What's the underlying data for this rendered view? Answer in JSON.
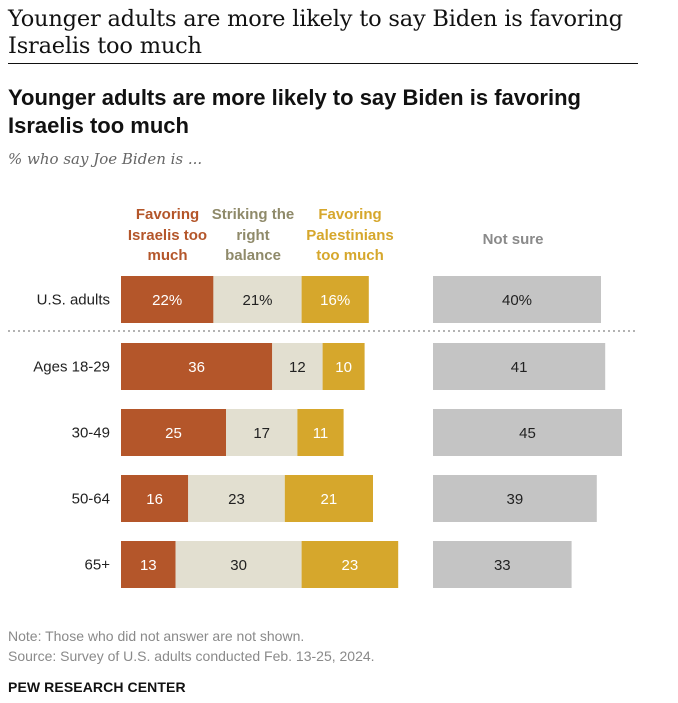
{
  "page": {
    "heading": "Younger adults are more likely to say Biden is favoring Israelis too much"
  },
  "chart_data": {
    "type": "bar",
    "orientation": "horizontal",
    "stacked": true,
    "title": "Younger adults are more likely to say Biden is favoring Israelis too much",
    "subtitle": "% who say Joe Biden is ...",
    "categories": [
      "U.S. adults",
      "Ages 18-29",
      "30-49",
      "50-64",
      "65+"
    ],
    "series": [
      {
        "name": "Favoring Israelis too much",
        "color": "#b4562a",
        "text_color": "#ffffff",
        "values": [
          22,
          36,
          25,
          16,
          13
        ],
        "labels": [
          "22%",
          "36",
          "25",
          "16",
          "13"
        ]
      },
      {
        "name": "Striking the right balance",
        "color": "#e2dfd0",
        "text_color": "#222222",
        "values": [
          21,
          12,
          17,
          23,
          30
        ],
        "labels": [
          "21%",
          "12",
          "17",
          "23",
          "30"
        ]
      },
      {
        "name": "Favoring Palestinians too much",
        "color": "#d6a72c",
        "text_color": "#ffffff",
        "values": [
          16,
          10,
          11,
          21,
          23
        ],
        "labels": [
          "16%",
          "10",
          "11",
          "21",
          "23"
        ]
      },
      {
        "name": "Not sure",
        "color": "#c4c4c4",
        "text_color": "#222222",
        "separate": true,
        "values": [
          40,
          41,
          45,
          39,
          33
        ],
        "labels": [
          "40%",
          "41",
          "45",
          "39",
          "33"
        ]
      }
    ],
    "legend": {
      "favoring_israelis": "Favoring Israelis too much",
      "right_balance": "Striking the right balance",
      "favoring_palestinians": "Favoring Palestinians too much",
      "not_sure": "Not sure"
    },
    "legend_colors": {
      "favoring_israelis": "#b4562a",
      "right_balance": "#8f8a6a",
      "favoring_palestinians": "#d6a72c",
      "not_sure": "#8a8a8a"
    },
    "xlim": [
      0,
      100
    ],
    "grid": false,
    "legend_placement": "top"
  },
  "footer": {
    "note": "Note: Those who did not answer are not shown.",
    "source": "Source: Survey of U.S. adults conducted Feb. 13-25, 2024.",
    "brand": "PEW RESEARCH CENTER"
  }
}
